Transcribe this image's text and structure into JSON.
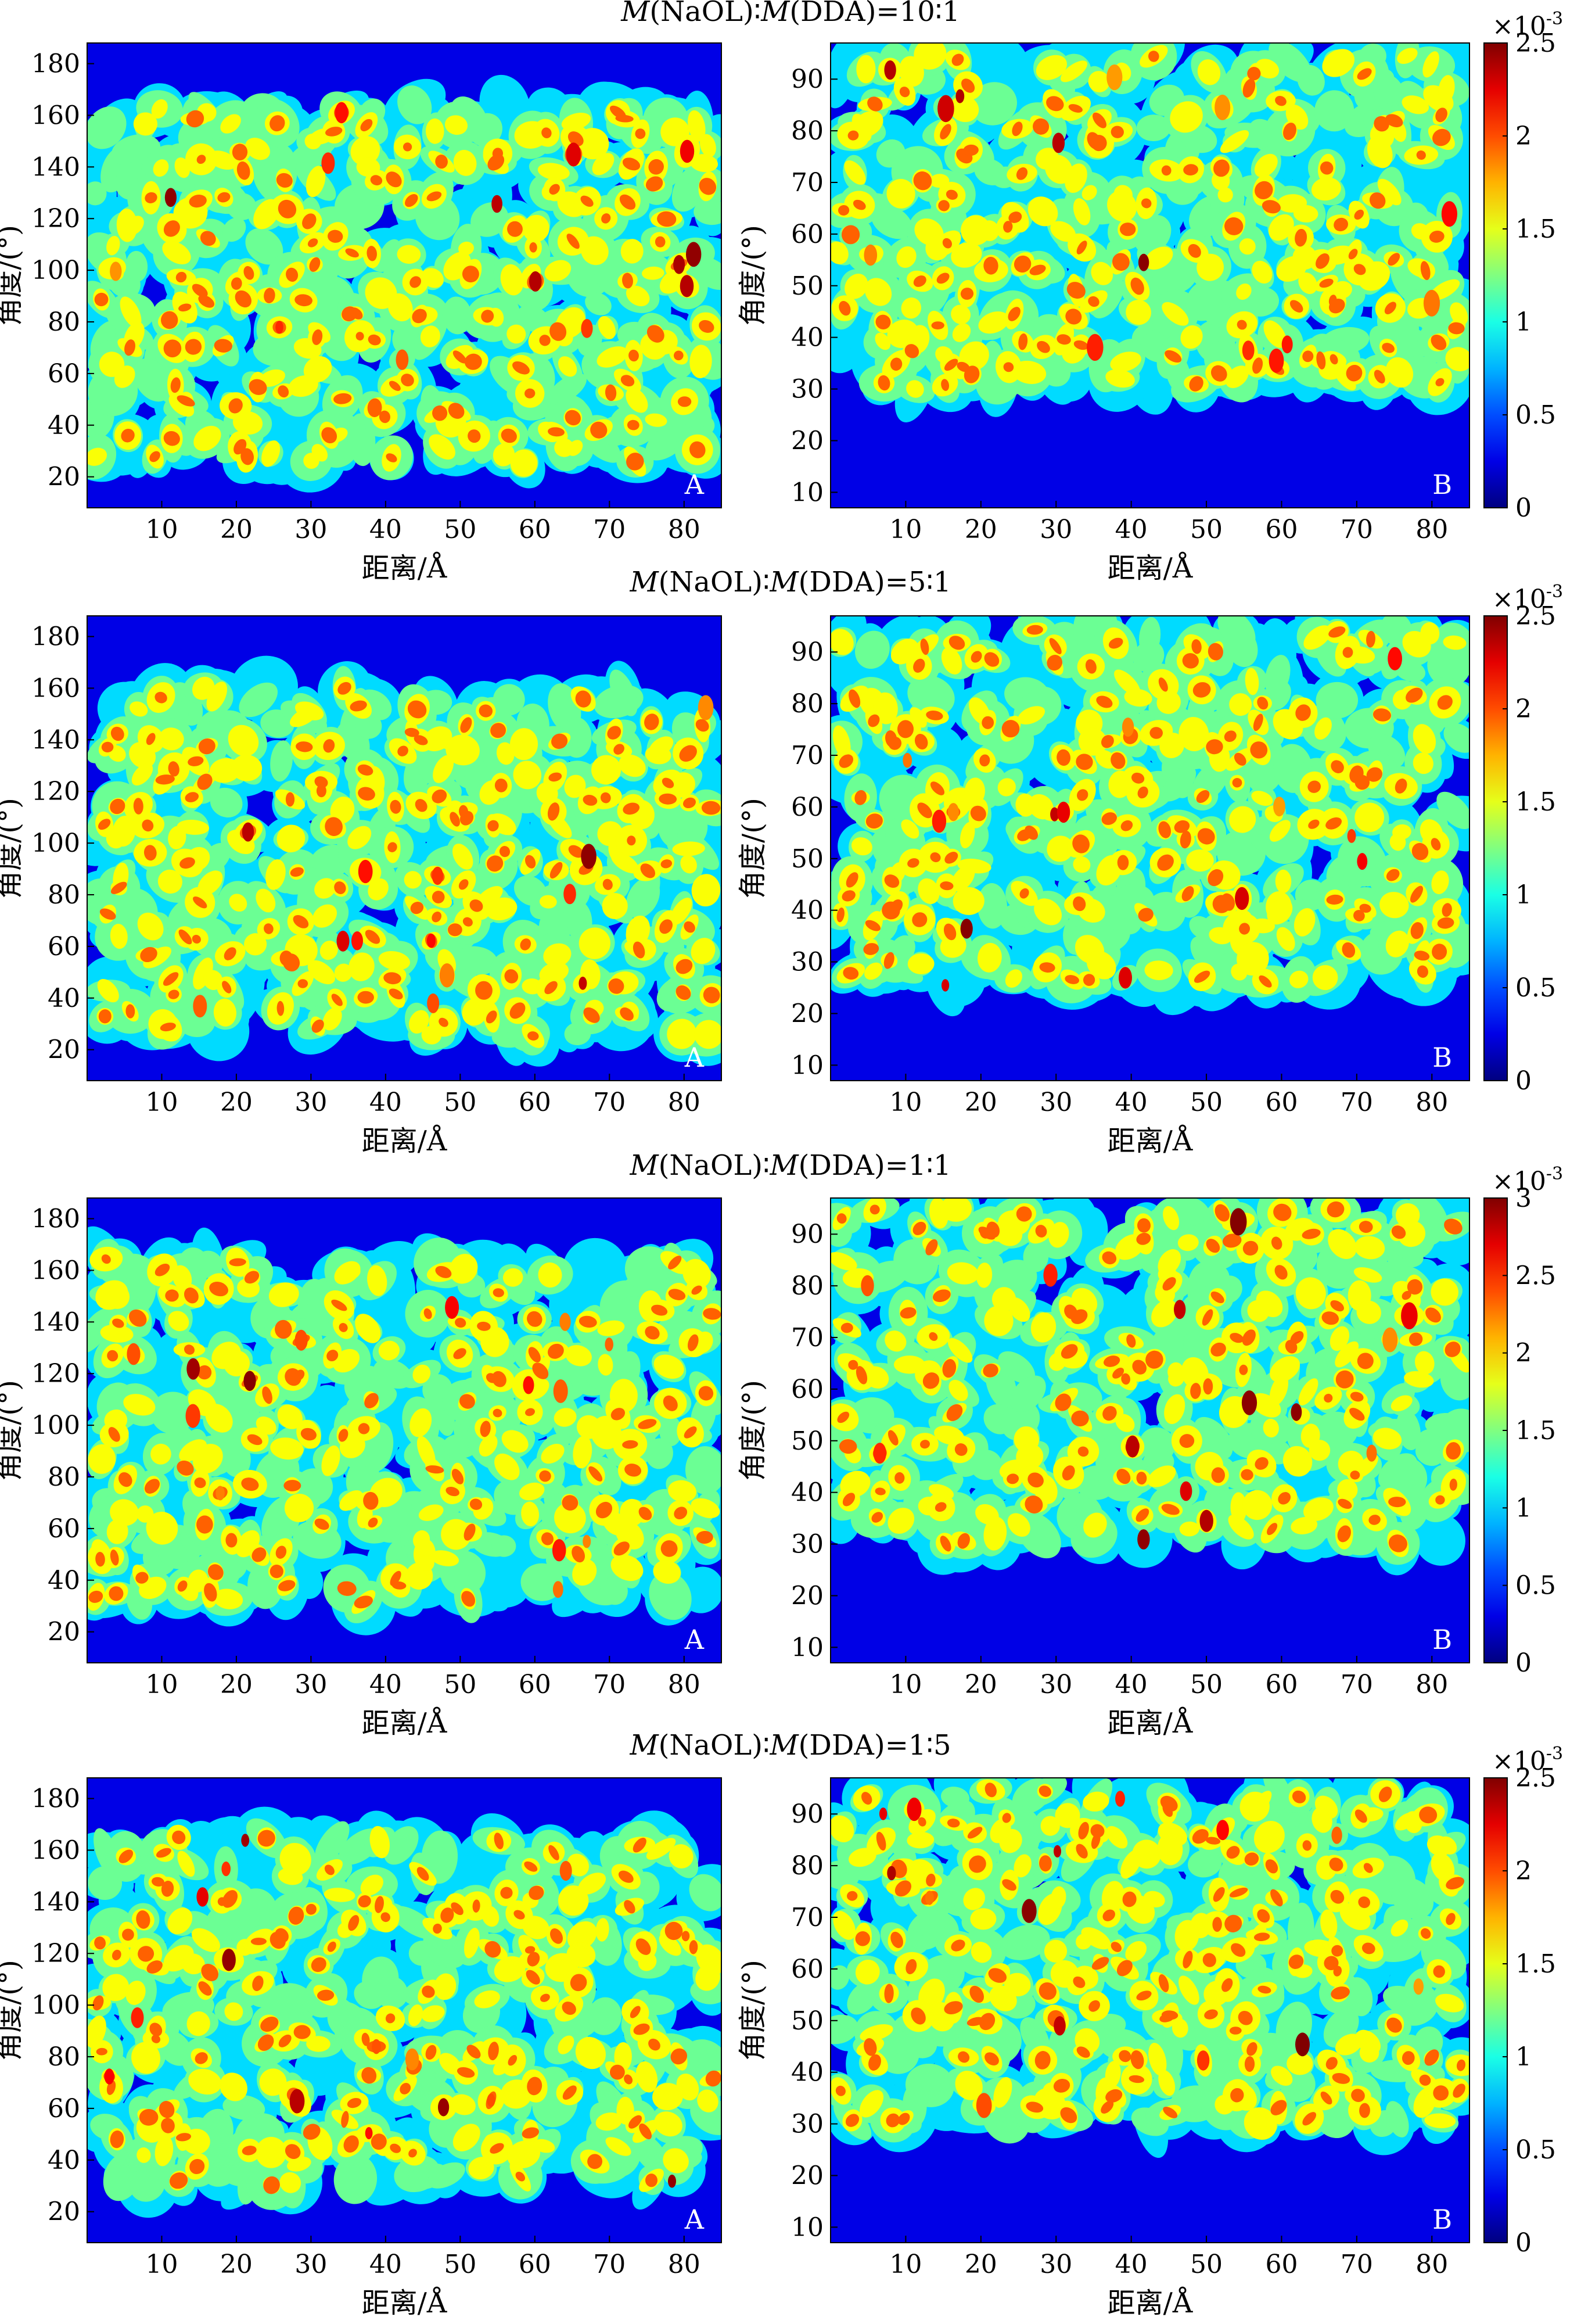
{
  "chart_data": [
    {
      "type": "heatmap",
      "title": "M(NaOL)∶M(DDA)=10∶1",
      "colorbar": {
        "exponent_label": "×10-3",
        "ticks": [
          "0",
          "0.5",
          "1",
          "1.5",
          "2",
          "2.5"
        ],
        "max": 2.5
      },
      "panels": [
        {
          "label": "A",
          "xlabel": "距离/Å",
          "ylabel": "角度/(°)",
          "xticks": [
            10,
            20,
            30,
            40,
            50,
            60,
            70,
            80
          ],
          "yticks": [
            20,
            40,
            60,
            80,
            100,
            120,
            140,
            160,
            180
          ],
          "xlim": [
            0,
            85
          ],
          "ylim": [
            8,
            188
          ],
          "band": [
            25,
            165
          ],
          "peak": 2.5
        },
        {
          "label": "B",
          "xlabel": "距离/Å",
          "ylabel": "角度/(°)",
          "xticks": [
            10,
            20,
            30,
            40,
            50,
            60,
            70,
            80
          ],
          "yticks": [
            10,
            20,
            30,
            40,
            50,
            60,
            70,
            80,
            90
          ],
          "xlim": [
            0,
            85
          ],
          "ylim": [
            7,
            97
          ],
          "band": [
            30,
            95
          ],
          "peak": 2.5
        }
      ]
    },
    {
      "type": "heatmap",
      "title": "M(NaOL)∶M(DDA)=5∶1",
      "colorbar": {
        "exponent_label": "×10-3",
        "ticks": [
          "0",
          "0.5",
          "1",
          "1.5",
          "2",
          "2.5"
        ],
        "max": 2.5
      },
      "panels": [
        {
          "label": "A",
          "xlabel": "距离/Å",
          "ylabel": "角度/(°)",
          "xticks": [
            10,
            20,
            30,
            40,
            50,
            60,
            70,
            80
          ],
          "yticks": [
            20,
            40,
            60,
            80,
            100,
            120,
            140,
            160,
            180
          ],
          "xlim": [
            0,
            85
          ],
          "ylim": [
            8,
            188
          ],
          "band": [
            25,
            160
          ],
          "peak": 2.5
        },
        {
          "label": "B",
          "xlabel": "距离/Å",
          "ylabel": "角度/(°)",
          "xticks": [
            10,
            20,
            30,
            40,
            50,
            60,
            70,
            80
          ],
          "yticks": [
            10,
            20,
            30,
            40,
            50,
            60,
            70,
            80,
            90
          ],
          "xlim": [
            0,
            85
          ],
          "ylim": [
            7,
            97
          ],
          "band": [
            25,
            95
          ],
          "peak": 2.5
        }
      ]
    },
    {
      "type": "heatmap",
      "title": "M(NaOL)∶M(DDA)=1∶1",
      "colorbar": {
        "exponent_label": "×10-3",
        "ticks": [
          "0",
          "0.5",
          "1",
          "1.5",
          "2",
          "2.5",
          "3"
        ],
        "max": 3
      },
      "panels": [
        {
          "label": "A",
          "xlabel": "距离/Å",
          "ylabel": "角度/(°)",
          "xticks": [
            10,
            20,
            30,
            40,
            50,
            60,
            70,
            80
          ],
          "yticks": [
            20,
            40,
            60,
            80,
            100,
            120,
            140,
            160,
            180
          ],
          "xlim": [
            0,
            85
          ],
          "ylim": [
            8,
            188
          ],
          "band": [
            30,
            165
          ],
          "peak": 3
        },
        {
          "label": "B",
          "xlabel": "距离/Å",
          "ylabel": "角度/(°)",
          "xticks": [
            10,
            20,
            30,
            40,
            50,
            60,
            70,
            80
          ],
          "yticks": [
            10,
            20,
            30,
            40,
            50,
            60,
            70,
            80,
            90
          ],
          "xlim": [
            0,
            85
          ],
          "ylim": [
            7,
            97
          ],
          "band": [
            30,
            95
          ],
          "peak": 3
        }
      ]
    },
    {
      "type": "heatmap",
      "title": "M(NaOL)∶M(DDA)=1∶5",
      "colorbar": {
        "exponent_label": "×10-3",
        "ticks": [
          "0",
          "0.5",
          "1",
          "1.5",
          "2",
          "2.5"
        ],
        "max": 2.5
      },
      "panels": [
        {
          "label": "A",
          "xlabel": "距离/Å",
          "ylabel": "角度/(°)",
          "xticks": [
            10,
            20,
            30,
            40,
            50,
            60,
            70,
            80
          ],
          "yticks": [
            20,
            40,
            60,
            80,
            100,
            120,
            140,
            160,
            180
          ],
          "xlim": [
            0,
            85
          ],
          "ylim": [
            8,
            188
          ],
          "band": [
            30,
            165
          ],
          "peak": 2.5
        },
        {
          "label": "B",
          "xlabel": "距离/Å",
          "ylabel": "角度/(°)",
          "xticks": [
            10,
            20,
            30,
            40,
            50,
            60,
            70,
            80
          ],
          "yticks": [
            10,
            20,
            30,
            40,
            50,
            60,
            70,
            80,
            90
          ],
          "xlim": [
            0,
            85
          ],
          "ylim": [
            7,
            97
          ],
          "band": [
            30,
            95
          ],
          "peak": 2.5
        }
      ]
    }
  ]
}
